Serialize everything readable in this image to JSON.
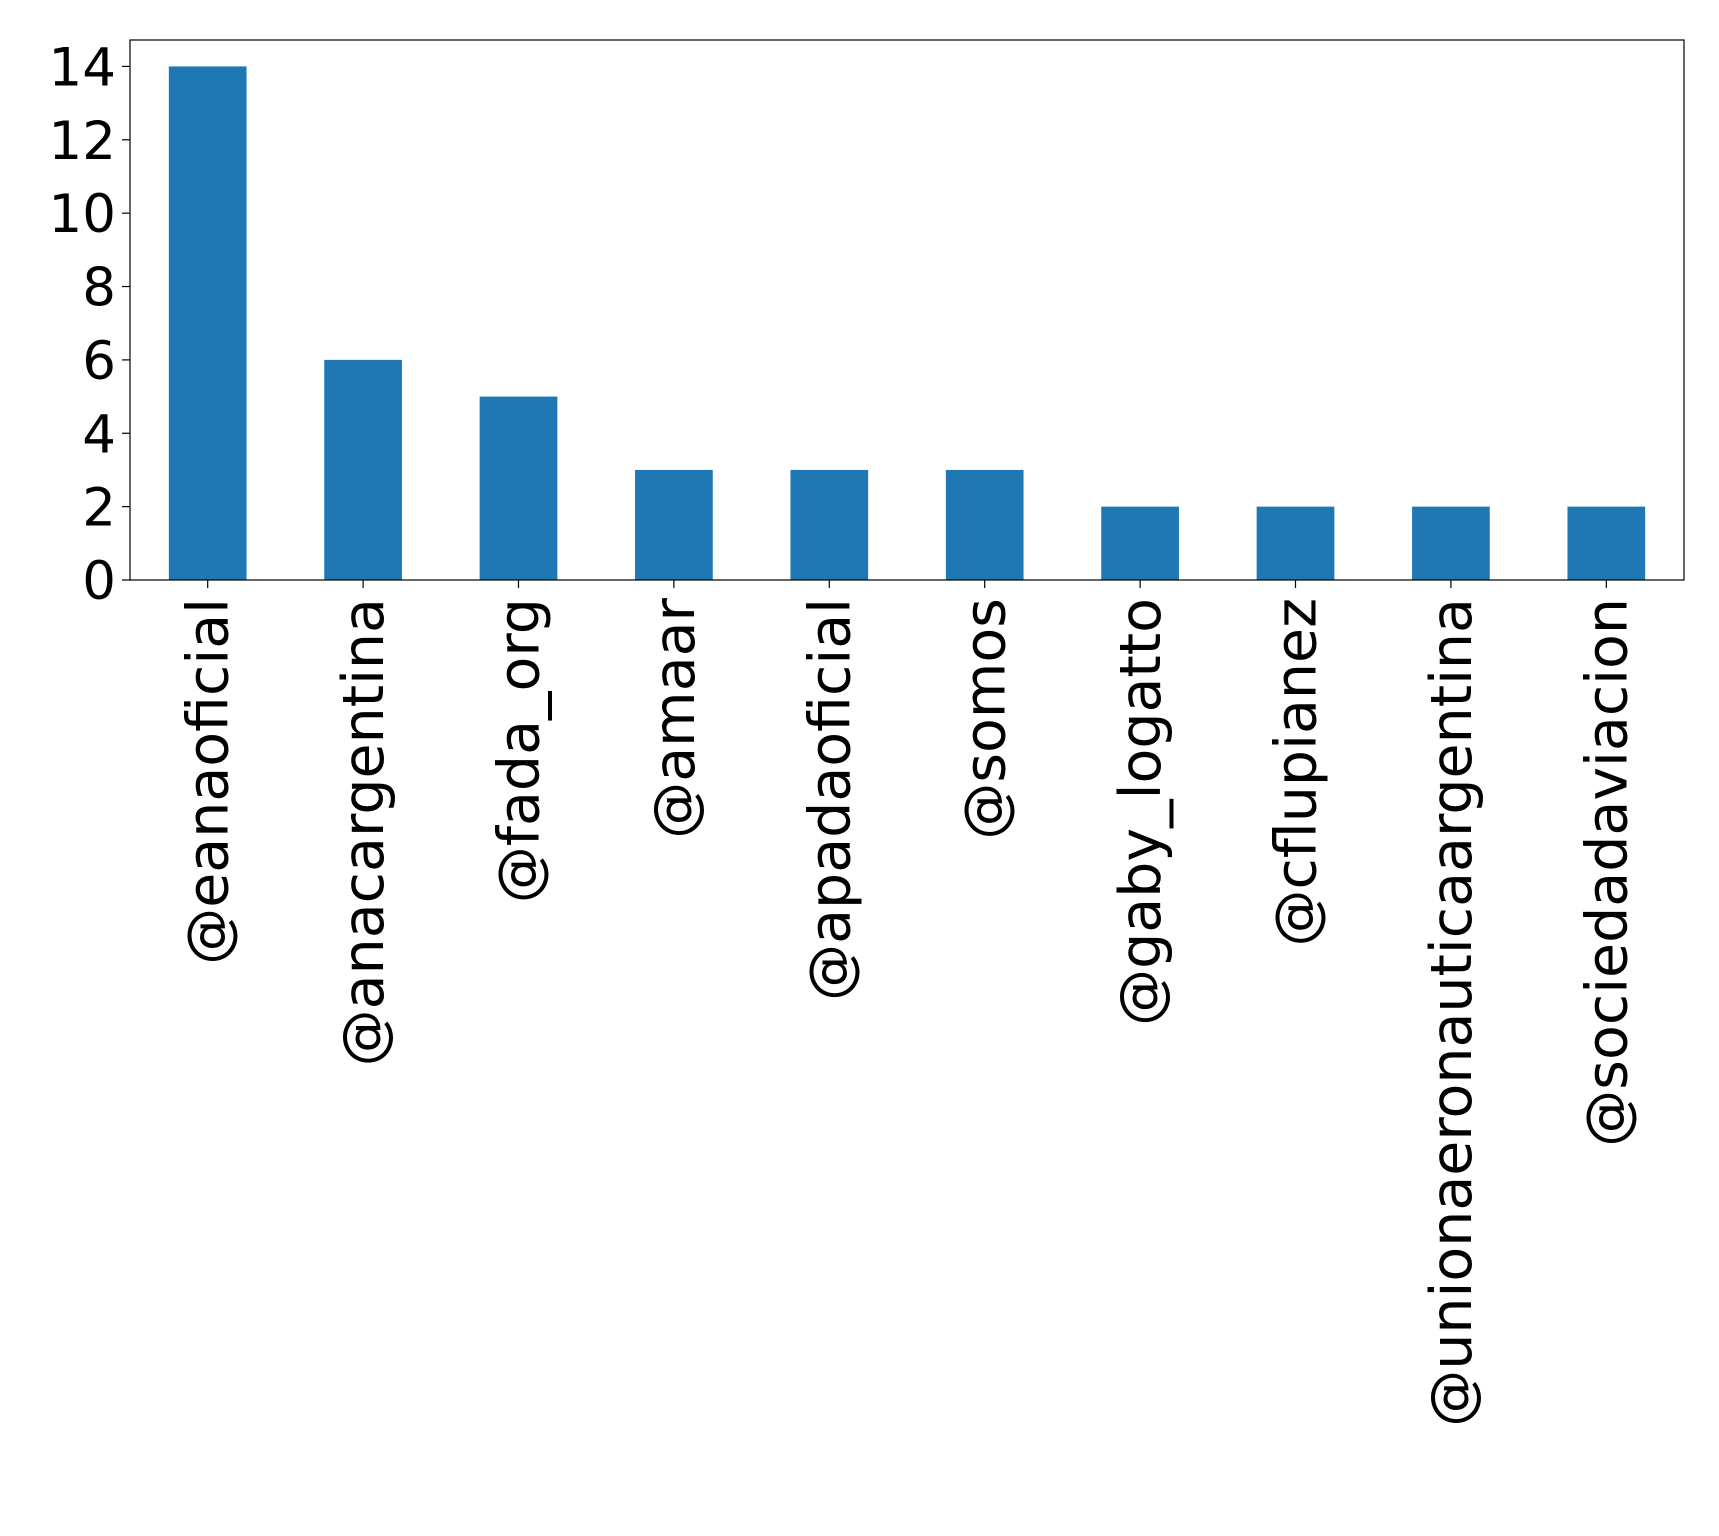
{
  "chart_data": {
    "type": "bar",
    "categories": [
      "@eanaoficial",
      "@anacargentina",
      "@fada_org",
      "@amaar",
      "@apadaoficial",
      "@somos",
      "@gaby_logatto",
      "@cflupianez",
      "@unionaeronauticaargentina",
      "@sociedadaviacion"
    ],
    "values": [
      14,
      6,
      5,
      3,
      3,
      3,
      2,
      2,
      2,
      2
    ],
    "color": "#1f77b4",
    "ylim": [
      0,
      14.72
    ],
    "yticks": [
      0,
      2,
      4,
      6,
      8,
      10,
      12,
      14
    ],
    "grid": false
  }
}
